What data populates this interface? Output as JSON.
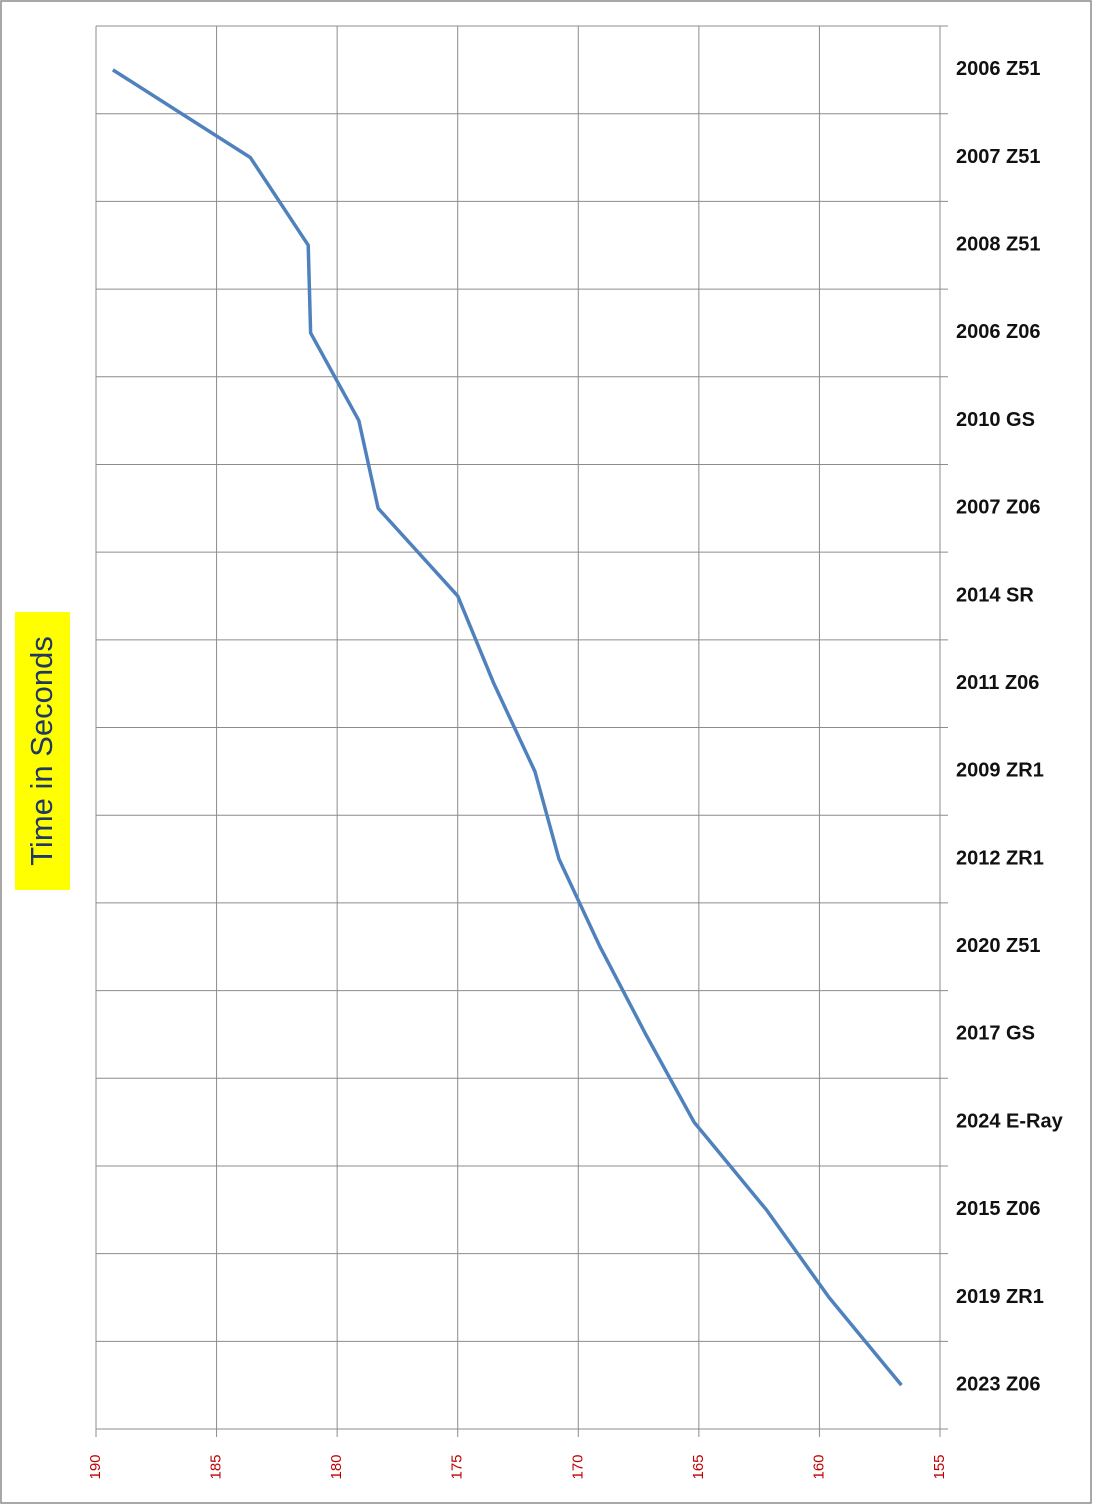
{
  "chart_data": {
    "type": "line",
    "orientation": "horizontal",
    "axis_title": "Time in Seconds",
    "categories": [
      "2006 Z51",
      "2007 Z51",
      "2008 Z51",
      "2006 Z06",
      "2010 GS",
      "2007 Z06",
      "2014 SR",
      "2011 Z06",
      "2009 ZR1",
      "2012 ZR1",
      "2020 Z51",
      "2017 GS",
      "2024 E-Ray",
      "2015 Z06",
      "2019 ZR1",
      "2023 Z06"
    ],
    "values": [
      189.3,
      183.6,
      181.2,
      181.1,
      179.1,
      178.3,
      175.0,
      173.5,
      171.8,
      170.8,
      169.1,
      167.2,
      165.2,
      162.2,
      159.6,
      156.6
    ],
    "color": "#4f81bd",
    "xlim": [
      190,
      155
    ],
    "xticks": [
      190,
      185,
      180,
      175,
      170,
      165,
      160,
      155
    ],
    "grid": true
  }
}
